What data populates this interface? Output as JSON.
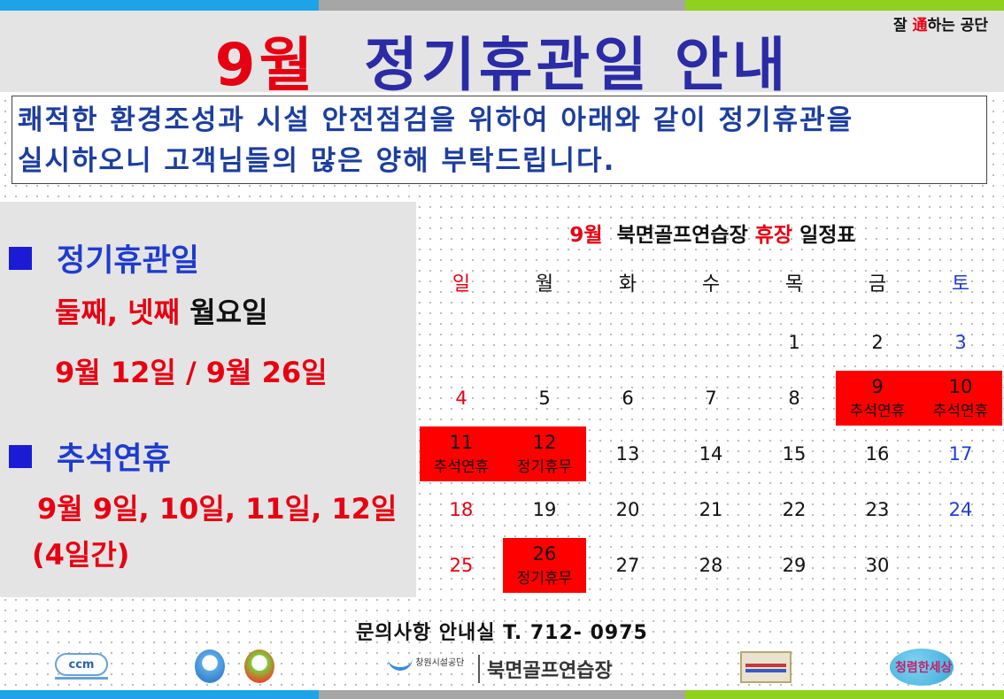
{
  "header": {
    "title_month": "9월",
    "title_rest": "정기휴관일 안내",
    "slogan_a": "잘 ",
    "slogan_em": "通",
    "slogan_b": "하는 공단"
  },
  "intro": {
    "line1": "쾌적한 환경조성과 시설 안전점검을 위하여 아래와 같이 정기휴관을",
    "line2": "실시하오니 고객님들의 많은 양해 부탁드립니다."
  },
  "info": {
    "section1_heading": "정기휴관일",
    "section1_days_red": "둘째, 넷째",
    "section1_days_black": "월요일",
    "section1_dates": "9월 12일 / 9월 26일",
    "section2_heading": "추석연휴",
    "section2_dates": "9월 9일, 10일, 11일, 12일",
    "section2_duration": "(4일간)"
  },
  "calendar": {
    "title_month": "9월",
    "title_name": "북면골프연습장",
    "title_closed": "휴장",
    "title_suffix": "일정표",
    "weekdays": [
      "일",
      "월",
      "화",
      "수",
      "목",
      "금",
      "토"
    ],
    "weeks": [
      [
        {
          "d": ""
        },
        {
          "d": ""
        },
        {
          "d": ""
        },
        {
          "d": ""
        },
        {
          "d": "1"
        },
        {
          "d": "2"
        },
        {
          "d": "3"
        }
      ],
      [
        {
          "d": "4"
        },
        {
          "d": "5"
        },
        {
          "d": "6"
        },
        {
          "d": "7"
        },
        {
          "d": "8"
        },
        {
          "d": "9",
          "note": "추석연휴"
        },
        {
          "d": "10",
          "note": "추석연휴"
        }
      ],
      [
        {
          "d": "11",
          "note": "추석연휴"
        },
        {
          "d": "12",
          "note": "정기휴무"
        },
        {
          "d": "13"
        },
        {
          "d": "14"
        },
        {
          "d": "15"
        },
        {
          "d": "16"
        },
        {
          "d": "17"
        }
      ],
      [
        {
          "d": "18"
        },
        {
          "d": "19"
        },
        {
          "d": "20"
        },
        {
          "d": "21"
        },
        {
          "d": "22"
        },
        {
          "d": "23"
        },
        {
          "d": "24"
        }
      ],
      [
        {
          "d": "25"
        },
        {
          "d": "26",
          "note": "정기휴무"
        },
        {
          "d": "27"
        },
        {
          "d": "28"
        },
        {
          "d": "29"
        },
        {
          "d": "30"
        },
        {
          "d": ""
        }
      ]
    ],
    "highlight_color": "#ff0000"
  },
  "contact": {
    "text": "문의사항  안내실 T. 712- 0975"
  },
  "footer": {
    "ccm_logo": "ccm",
    "corp_name": "창원시설공단",
    "range_name": "북면골프연습장",
    "clean_logo": "청렴한세상"
  },
  "colors": {
    "red": "#e60012",
    "blue": "#1f3ccf",
    "title_blue": "#2b2ba6",
    "panel_gray": "#e4e4e4"
  }
}
